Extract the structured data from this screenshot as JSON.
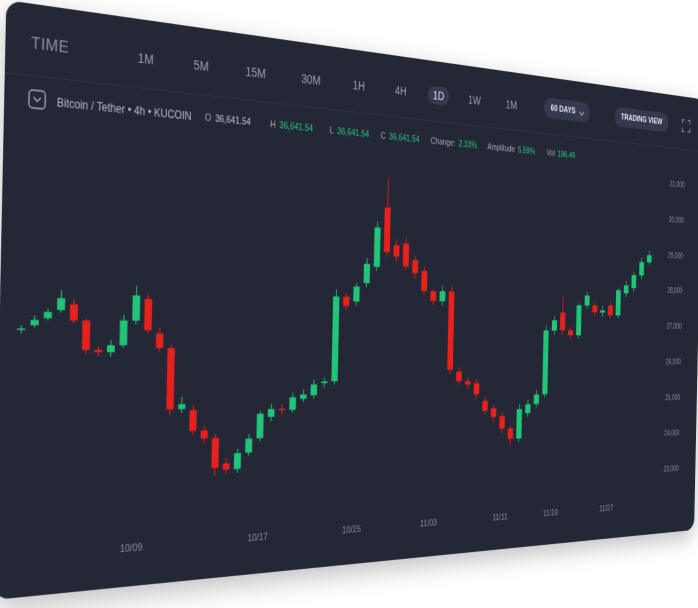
{
  "header": {
    "title": "TIME",
    "timeframes": [
      "1M",
      "5M",
      "15M",
      "30M",
      "1H",
      "4H",
      "1D",
      "1W",
      "1M"
    ],
    "range_button": "60 DAYS",
    "view_button": "TRADING VIEW"
  },
  "symbol": {
    "name": "Bitcoin / Tether • 4h • KUCOIN",
    "stats": [
      {
        "label": "O",
        "value": "36,641.54"
      },
      {
        "label": "H",
        "value": "36,641.54"
      },
      {
        "label": "L",
        "value": "36,641.54"
      },
      {
        "label": "C",
        "value": "36,641.54"
      },
      {
        "label": "Change:",
        "value": "2.33%"
      },
      {
        "label": "Amplitude",
        "value": "5.59%"
      },
      {
        "label": "Vol",
        "value": "196.46"
      }
    ]
  },
  "chart_data": {
    "type": "candlestick",
    "up_color": "#20c57a",
    "down_color": "#e8211c",
    "grid": false,
    "categories": [
      null,
      null,
      null,
      null,
      null,
      null,
      null,
      null,
      null,
      "10/09",
      null,
      null,
      null,
      null,
      null,
      null,
      null,
      null,
      null,
      null,
      "10/17",
      null,
      null,
      null,
      null,
      null,
      null,
      null,
      null,
      "10/25",
      null,
      null,
      null,
      null,
      null,
      null,
      null,
      "11/03",
      null,
      null,
      null,
      null,
      null,
      null,
      null,
      "11/11",
      null,
      null,
      null,
      null,
      null,
      "11/19",
      null,
      null,
      null,
      null,
      null,
      null,
      "11/27",
      null,
      null,
      null,
      null,
      null
    ],
    "open": [
      26760,
      26850,
      27000,
      27175,
      27300,
      26960,
      26340,
      26290,
      26440,
      26975,
      27450,
      26700,
      26380,
      25030,
      25000,
      24540,
      24360,
      23780,
      23640,
      24000,
      24320,
      24800,
      24980,
      24950,
      25200,
      25280,
      25560,
      25600,
      27610,
      27500,
      27950,
      28350,
      29800,
      28900,
      28950,
      28550,
      28300,
      27800,
      27560,
      27810,
      25800,
      25560,
      25500,
      25050,
      24850,
      24650,
      24320,
      24050,
      24700,
      24930,
      25180,
      26860,
      27340,
      26870,
      26740,
      27540,
      27550,
      27360,
      27560,
      27290,
      27900,
      28050,
      28410,
      28780
    ],
    "high": [
      26850,
      27050,
      27200,
      27590,
      27420,
      27000,
      26420,
      26550,
      27100,
      27730,
      27550,
      26820,
      26450,
      25300,
      25100,
      24650,
      24450,
      23900,
      24100,
      24420,
      24950,
      25100,
      25080,
      25350,
      25420,
      25650,
      25700,
      27780,
      27700,
      27950,
      28550,
      29450,
      30510,
      29050,
      29100,
      28650,
      28400,
      27850,
      27950,
      27950,
      25900,
      25650,
      25600,
      25150,
      24950,
      24750,
      24400,
      24950,
      25050,
      25300,
      27000,
      27250,
      27790,
      26950,
      27600,
      27900,
      27650,
      27550,
      27650,
      28050,
      28250,
      28500,
      28900,
      29100
    ],
    "low": [
      26680,
      26800,
      26950,
      27120,
      26900,
      26250,
      26200,
      26200,
      26380,
      26900,
      26700,
      26300,
      24900,
      24950,
      24450,
      24250,
      23510,
      23550,
      23550,
      23930,
      24250,
      24700,
      24850,
      24880,
      25120,
      25200,
      25450,
      25520,
      27300,
      27400,
      27850,
      28250,
      28600,
      28500,
      28300,
      28100,
      27700,
      27450,
      27450,
      25750,
      25450,
      25350,
      25100,
      24700,
      24500,
      24200,
      23870,
      23950,
      24600,
      24850,
      25100,
      26750,
      26750,
      26600,
      26650,
      27450,
      27250,
      27250,
      27200,
      27200,
      27800,
      27950,
      28300,
      28700
    ],
    "close": [
      26780,
      26960,
      27130,
      27425,
      26960,
      26340,
      26290,
      26440,
      26975,
      27520,
      26770,
      26380,
      25030,
      25140,
      24540,
      24360,
      23690,
      23640,
      24000,
      24320,
      24880,
      24980,
      24950,
      25240,
      25300,
      25530,
      25600,
      27610,
      27390,
      27860,
      28410,
      29300,
      28720,
      28620,
      28390,
      28230,
      27800,
      27560,
      27810,
      25850,
      25560,
      25470,
      25220,
      24790,
      24630,
      24320,
      24050,
      24810,
      24930,
      25180,
      26860,
      27130,
      26870,
      26740,
      27540,
      27810,
      27360,
      27420,
      27290,
      27980,
      28120,
      28410,
      28780,
      28980
    ],
    "ylim": [
      22650,
      31250
    ],
    "yticks": [
      {
        "value": 23000,
        "label": "23,000"
      },
      {
        "value": 24000,
        "label": "24,000"
      },
      {
        "value": 25000,
        "label": "25,000"
      },
      {
        "value": 26000,
        "label": "26,000"
      },
      {
        "value": 27000,
        "label": "27,000"
      },
      {
        "value": 28000,
        "label": "28,000"
      },
      {
        "value": 29000,
        "label": "29,000"
      },
      {
        "value": 30000,
        "label": "30,000"
      },
      {
        "value": 31000,
        "label": "31,000"
      }
    ]
  }
}
